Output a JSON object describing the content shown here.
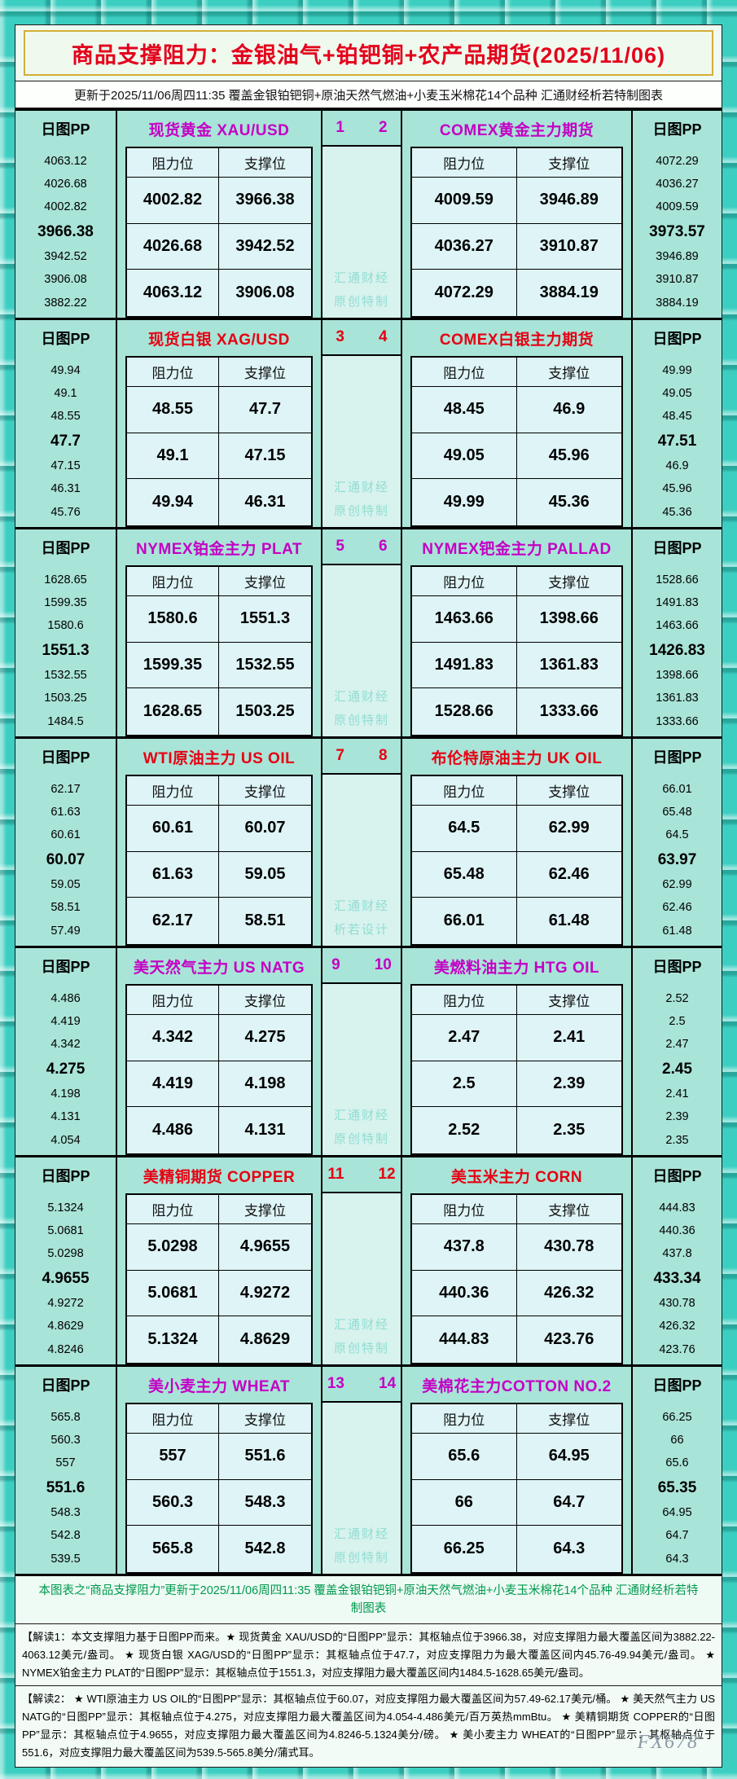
{
  "header": {
    "title": "商品支撑阻力：金银油气+铂钯铜+农产品期货(2025/11/06)",
    "subtitle": "更新于2025/11/06周四11:35  覆盖金银铂钯铜+原油天然气燃油+小麦玉米棉花14个品种  汇通财经析若特制图表"
  },
  "labels": {
    "pp": "日图PP",
    "resistance": "阻力位",
    "support": "支撑位",
    "watermark_line1": "汇通财经"
  },
  "colors": {
    "accent_magenta": "#c400c4",
    "accent_red": "#e60012",
    "summary_green": "#009a4e",
    "frame_teal": "#3ccfc1",
    "gold_border": "#d4af37"
  },
  "chart_data": {
    "type": "table",
    "title": "商品支撑阻力：金银油气+铂钯铜+农产品期货(2025/11/06)",
    "columns": [
      "日图PP",
      "阻力位",
      "支撑位"
    ],
    "sections": [
      {
        "accent": "m",
        "pair_numbers": [
          "1",
          "2"
        ],
        "watermark_line2": "原创特制",
        "left": {
          "title": "现货黄金 XAU/USD",
          "pp": [
            "4063.12",
            "4026.68",
            "4002.82",
            "3966.38",
            "3942.52",
            "3906.08",
            "3882.22"
          ],
          "pivot": "3966.38",
          "rows": [
            [
              "4002.82",
              "3966.38"
            ],
            [
              "4026.68",
              "3942.52"
            ],
            [
              "4063.12",
              "3906.08"
            ]
          ]
        },
        "right": {
          "title": "COMEX黄金主力期货",
          "pp": [
            "4072.29",
            "4036.27",
            "4009.59",
            "3973.57",
            "3946.89",
            "3910.87",
            "3884.19"
          ],
          "pivot": "3973.57",
          "rows": [
            [
              "4009.59",
              "3946.89"
            ],
            [
              "4036.27",
              "3910.87"
            ],
            [
              "4072.29",
              "3884.19"
            ]
          ]
        }
      },
      {
        "accent": "r",
        "pair_numbers": [
          "3",
          "4"
        ],
        "watermark_line2": "原创特制",
        "left": {
          "title": "现货白银 XAG/USD",
          "pp": [
            "49.94",
            "49.1",
            "48.55",
            "47.7",
            "47.15",
            "46.31",
            "45.76"
          ],
          "pivot": "47.7",
          "rows": [
            [
              "48.55",
              "47.7"
            ],
            [
              "49.1",
              "47.15"
            ],
            [
              "49.94",
              "46.31"
            ]
          ]
        },
        "right": {
          "title": "COMEX白银主力期货",
          "pp": [
            "49.99",
            "49.05",
            "48.45",
            "47.51",
            "46.9",
            "45.96",
            "45.36"
          ],
          "pivot": "47.51",
          "rows": [
            [
              "48.45",
              "46.9"
            ],
            [
              "49.05",
              "45.96"
            ],
            [
              "49.99",
              "45.36"
            ]
          ]
        }
      },
      {
        "accent": "m",
        "pair_numbers": [
          "5",
          "6"
        ],
        "watermark_line2": "原创特制",
        "left": {
          "title": "NYMEX铂金主力 PLAT",
          "pp": [
            "1628.65",
            "1599.35",
            "1580.6",
            "1551.3",
            "1532.55",
            "1503.25",
            "1484.5"
          ],
          "pivot": "1551.3",
          "rows": [
            [
              "1580.6",
              "1551.3"
            ],
            [
              "1599.35",
              "1532.55"
            ],
            [
              "1628.65",
              "1503.25"
            ]
          ]
        },
        "right": {
          "title": "NYMEX钯金主力 PALLAD",
          "pp": [
            "1528.66",
            "1491.83",
            "1463.66",
            "1426.83",
            "1398.66",
            "1361.83",
            "1333.66"
          ],
          "pivot": "1426.83",
          "rows": [
            [
              "1463.66",
              "1398.66"
            ],
            [
              "1491.83",
              "1361.83"
            ],
            [
              "1528.66",
              "1333.66"
            ]
          ]
        }
      },
      {
        "accent": "r",
        "pair_numbers": [
          "7",
          "8"
        ],
        "watermark_line2": "析若设计",
        "left": {
          "title": "WTI原油主力 US OIL",
          "pp": [
            "62.17",
            "61.63",
            "60.61",
            "60.07",
            "59.05",
            "58.51",
            "57.49"
          ],
          "pivot": "60.07",
          "rows": [
            [
              "60.61",
              "60.07"
            ],
            [
              "61.63",
              "59.05"
            ],
            [
              "62.17",
              "58.51"
            ]
          ]
        },
        "right": {
          "title": "布伦特原油主力 UK OIL",
          "pp": [
            "66.01",
            "65.48",
            "64.5",
            "63.97",
            "62.99",
            "62.46",
            "61.48"
          ],
          "pivot": "63.97",
          "rows": [
            [
              "64.5",
              "62.99"
            ],
            [
              "65.48",
              "62.46"
            ],
            [
              "66.01",
              "61.48"
            ]
          ]
        }
      },
      {
        "accent": "m",
        "pair_numbers": [
          "9",
          "10"
        ],
        "watermark_line2": "原创特制",
        "left": {
          "title": "美天然气主力 US NATG",
          "pp": [
            "4.486",
            "4.419",
            "4.342",
            "4.275",
            "4.198",
            "4.131",
            "4.054"
          ],
          "pivot": "4.275",
          "rows": [
            [
              "4.342",
              "4.275"
            ],
            [
              "4.419",
              "4.198"
            ],
            [
              "4.486",
              "4.131"
            ]
          ]
        },
        "right": {
          "title": "美燃料油主力 HTG OIL",
          "pp": [
            "2.52",
            "2.5",
            "2.47",
            "2.45",
            "2.41",
            "2.39",
            "2.35"
          ],
          "pivot": "2.45",
          "rows": [
            [
              "2.47",
              "2.41"
            ],
            [
              "2.5",
              "2.39"
            ],
            [
              "2.52",
              "2.35"
            ]
          ]
        }
      },
      {
        "accent": "r",
        "pair_numbers": [
          "11",
          "12"
        ],
        "watermark_line2": "原创特制",
        "left": {
          "title": "美精铜期货 COPPER",
          "pp": [
            "5.1324",
            "5.0681",
            "5.0298",
            "4.9655",
            "4.9272",
            "4.8629",
            "4.8246"
          ],
          "pivot": "4.9655",
          "rows": [
            [
              "5.0298",
              "4.9655"
            ],
            [
              "5.0681",
              "4.9272"
            ],
            [
              "5.1324",
              "4.8629"
            ]
          ]
        },
        "right": {
          "title": "美玉米主力 CORN",
          "pp": [
            "444.83",
            "440.36",
            "437.8",
            "433.34",
            "430.78",
            "426.32",
            "423.76"
          ],
          "pivot": "433.34",
          "rows": [
            [
              "437.8",
              "430.78"
            ],
            [
              "440.36",
              "426.32"
            ],
            [
              "444.83",
              "423.76"
            ]
          ]
        }
      },
      {
        "accent": "m",
        "pair_numbers": [
          "13",
          "14"
        ],
        "watermark_line2": "原创特制",
        "left": {
          "title": "美小麦主力 WHEAT",
          "pp": [
            "565.8",
            "560.3",
            "557",
            "551.6",
            "548.3",
            "542.8",
            "539.5"
          ],
          "pivot": "551.6",
          "rows": [
            [
              "557",
              "551.6"
            ],
            [
              "560.3",
              "548.3"
            ],
            [
              "565.8",
              "542.8"
            ]
          ]
        },
        "right": {
          "title": "美棉花主力COTTON NO.2",
          "pp": [
            "66.25",
            "66",
            "65.6",
            "65.35",
            "64.95",
            "64.7",
            "64.3"
          ],
          "pivot": "65.35",
          "rows": [
            [
              "65.6",
              "64.95"
            ],
            [
              "66",
              "64.7"
            ],
            [
              "66.25",
              "64.3"
            ]
          ]
        }
      }
    ]
  },
  "footer": {
    "summary": "本图表之“商品支撑阻力”更新于2025/11/06周四11:35  覆盖金银铂钯铜+原油天然气燃油+小麦玉米棉花14个品种  汇通财经析若特制图表",
    "note1": "【解读1：本文支撑阻力基于日图PP而来。★ 现货黄金 XAU/USD的“日图PP”显示：其枢轴点位于3966.38，对应支撑阻力最大覆盖区间为3882.22-4063.12美元/盎司。 ★ 现货白银 XAG/USD的“日图PP”显示：其枢轴点位于47.7，对应支撑阻力为最大覆盖区间内45.76-49.94美元/盎司。 ★ NYMEX铂金主力 PLAT的“日图PP”显示：其枢轴点位于1551.3，对应支撑阻力最大覆盖区间内1484.5-1628.65美元/盎司。",
    "note2": "【解读2： ★ WTI原油主力 US OIL的“日图PP”显示：其枢轴点位于60.07，对应支撑阻力最大覆盖区间为57.49-62.17美元/桶。 ★ 美天然气主力 US NATG的“日图PP”显示：其枢轴点位于4.275，对应支撑阻力最大覆盖区间为4.054-4.486美元/百万英热mmBtu。 ★ 美精铜期货 COPPER的“日图PP”显示：其枢轴点位于4.9655，对应支撑阻力最大覆盖区间为4.8246-5.1324美分/磅。 ★ 美小麦主力 WHEAT的“日图PP”显示：其枢轴点位于551.6，对应支撑阻力最大覆盖区间为539.5-565.8美分/蒲式耳。",
    "watermark": "FX678"
  }
}
